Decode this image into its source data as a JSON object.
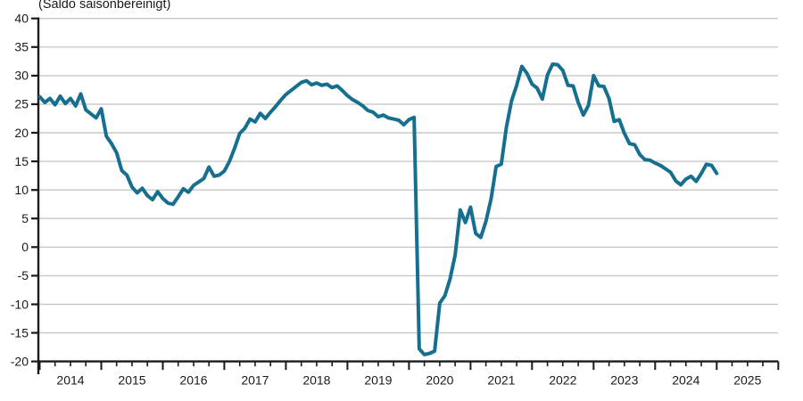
{
  "title": "(Saldo saisonbereinigt)",
  "colors": {
    "line": "#176f8f",
    "grid": "#c9c9c9",
    "axis": "#1a1a1a",
    "background": "#ffffff"
  },
  "chart_data": {
    "type": "line",
    "title": "(Saldo saisonbereinigt)",
    "xlabel": "",
    "ylabel": "",
    "ylim": [
      -20,
      40
    ],
    "y_ticks": [
      40,
      35,
      30,
      25,
      20,
      15,
      10,
      5,
      0,
      -5,
      -10,
      -15,
      -20
    ],
    "x_tick_years": [
      2014,
      2015,
      2016,
      2017,
      2018,
      2019,
      2020,
      2021,
      2022,
      2023,
      2024,
      2025
    ],
    "x_minor_ticks": "quarterly",
    "grid": "horizontal-light",
    "legend": "none",
    "frequency": "monthly",
    "start": "2014-01",
    "end": "2025-01",
    "series": [
      {
        "name": "Saldo saisonbereinigt",
        "values": [
          26.3,
          25.3,
          26.0,
          24.9,
          26.4,
          25.1,
          26.0,
          24.7,
          26.8,
          24.0,
          23.3,
          22.6,
          24.2,
          19.4,
          18.1,
          16.5,
          13.4,
          12.6,
          10.5,
          9.5,
          10.3,
          9.0,
          8.3,
          9.7,
          8.5,
          7.7,
          7.5,
          8.8,
          10.2,
          9.6,
          10.8,
          11.4,
          12.0,
          14.0,
          12.4,
          12.6,
          13.3,
          15.0,
          17.3,
          19.9,
          20.8,
          22.4,
          21.9,
          23.4,
          22.5,
          23.6,
          24.6,
          25.7,
          26.7,
          27.4,
          28.1,
          28.8,
          29.1,
          28.4,
          28.7,
          28.3,
          28.5,
          27.9,
          28.2,
          27.4,
          26.5,
          25.8,
          25.3,
          24.7,
          23.9,
          23.6,
          22.8,
          23.1,
          22.6,
          22.4,
          22.2,
          21.4,
          22.3,
          22.7,
          -17.8,
          -18.8,
          -18.6,
          -18.2,
          -9.8,
          -8.5,
          -5.6,
          -1.4,
          6.5,
          4.3,
          7.0,
          2.4,
          1.7,
          4.5,
          8.4,
          14.1,
          14.5,
          21.0,
          25.6,
          28.3,
          31.6,
          30.4,
          28.5,
          27.8,
          25.9,
          30.1,
          32.0,
          31.9,
          30.9,
          28.3,
          28.2,
          25.3,
          23.1,
          24.8,
          30.0,
          28.2,
          28.1,
          26.0,
          22.0,
          22.3,
          19.9,
          18.1,
          17.9,
          16.2,
          15.3,
          15.2,
          14.7,
          14.3,
          13.7,
          13.1,
          11.6,
          10.9,
          11.9,
          12.4,
          11.5,
          12.9,
          14.5,
          14.3,
          12.9
        ]
      }
    ]
  }
}
